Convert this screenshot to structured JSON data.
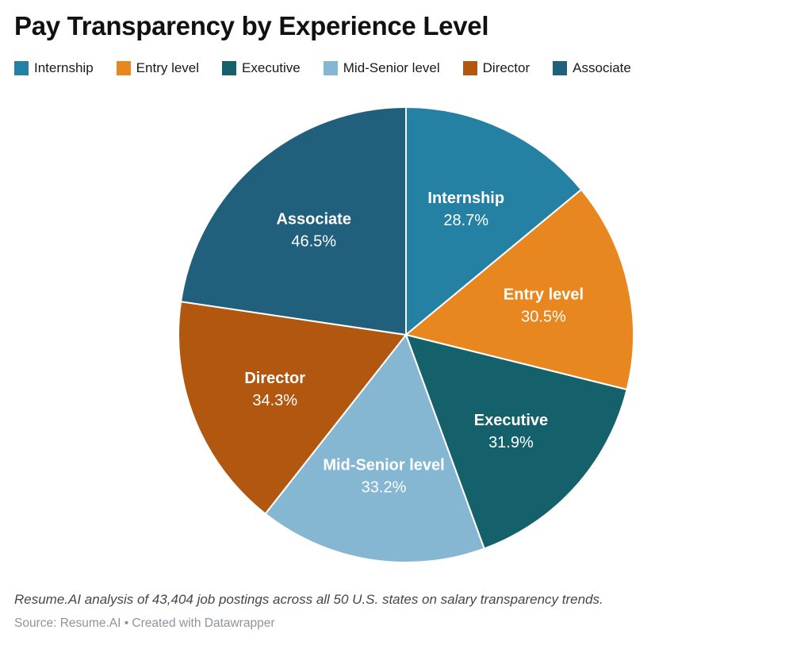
{
  "header": {
    "title": "Pay Transparency by Experience Level"
  },
  "chart_data": {
    "type": "pie",
    "title": "Pay Transparency by Experience Level",
    "legend_position": "top",
    "start_angle_deg": -90,
    "direction": "clockwise",
    "separator_color": "#ffffff",
    "label_text_color": "#ffffff",
    "slices": [
      {
        "label": "Internship",
        "value": 28.7,
        "display": "28.7%",
        "color": "#2581a3"
      },
      {
        "label": "Entry level",
        "value": 30.5,
        "display": "30.5%",
        "color": "#e8861f"
      },
      {
        "label": "Executive",
        "value": 31.9,
        "display": "31.9%",
        "color": "#14616c"
      },
      {
        "label": "Mid-Senior level",
        "value": 33.2,
        "display": "33.2%",
        "color": "#86b7d2"
      },
      {
        "label": "Director",
        "value": 34.3,
        "display": "34.3%",
        "color": "#b2570f"
      },
      {
        "label": "Associate",
        "value": 46.5,
        "display": "46.5%",
        "color": "#20607c"
      }
    ],
    "note": "Slice angles are proportional to the listed percentage values (values sum to 205.1)"
  },
  "footer": {
    "note": "Resume.AI analysis of 43,404 job postings across all 50 U.S. states on salary transparency trends.",
    "source": "Source: Resume.AI • Created with Datawrapper"
  }
}
